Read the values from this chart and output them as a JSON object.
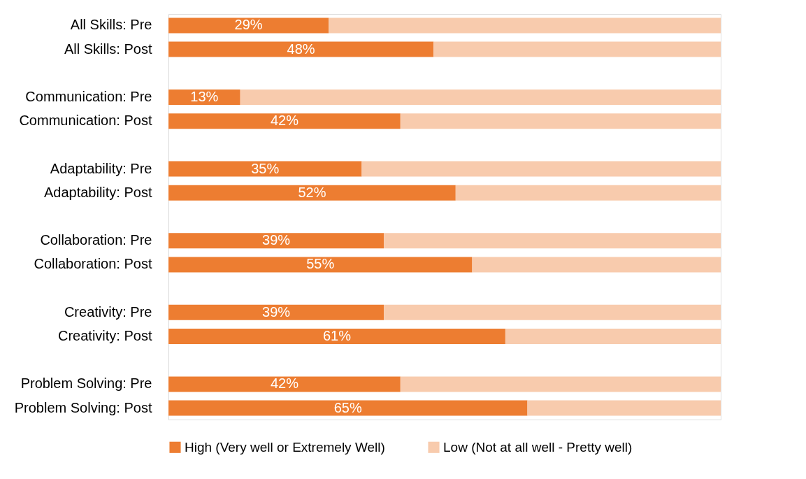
{
  "chart_data": {
    "type": "bar",
    "orientation": "horizontal",
    "stacked": true,
    "categories": [
      "All Skills: Pre",
      "All Skills: Post",
      null,
      "Communication: Pre",
      "Communication: Post",
      null,
      "Adaptability: Pre",
      "Adaptability: Post",
      null,
      "Collaboration: Pre",
      "Collaboration: Post",
      null,
      "Creativity: Pre",
      "Creativity: Post",
      null,
      "Problem Solving: Pre",
      "Problem Solving: Post"
    ],
    "series": [
      {
        "name": "High (Very well or Extremely Well)",
        "color": "#ed7d31",
        "values": [
          29,
          48,
          null,
          13,
          42,
          null,
          35,
          52,
          null,
          39,
          55,
          null,
          39,
          61,
          null,
          42,
          65
        ],
        "value_labels": [
          "29%",
          "48%",
          null,
          "13%",
          "42%",
          null,
          "35%",
          "52%",
          null,
          "39%",
          "55%",
          null,
          "39%",
          "61%",
          null,
          "42%",
          "65%"
        ]
      },
      {
        "name": "Low (Not at all well -  Pretty well)",
        "color": "#f8cbad",
        "values": [
          71,
          52,
          null,
          87,
          58,
          null,
          65,
          48,
          null,
          61,
          45,
          null,
          61,
          39,
          null,
          58,
          35
        ]
      }
    ],
    "xlim": [
      0,
      100
    ],
    "tick_labels": "y",
    "grid": false,
    "legend": "bottom"
  }
}
